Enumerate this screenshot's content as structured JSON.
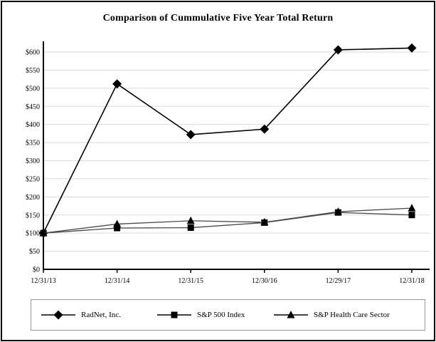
{
  "title": "Comparison of Cummulative Five Year Total Return",
  "colors": {
    "background": "#ffffff",
    "frame_border": "#000000",
    "axis": "#000000",
    "gridline": "#dadada",
    "marker": "#000000",
    "radnet_line": "#000000",
    "index_line": "#4a4a4a",
    "legend_border": "#999999"
  },
  "chart_data": {
    "type": "line",
    "title": "Comparison of Cummulative Five Year Total Return",
    "categories": [
      "12/31/13",
      "12/31/14",
      "12/31/15",
      "12/30/16",
      "12/29/17",
      "12/31/18"
    ],
    "series": [
      {
        "name": "RadNet, Inc.",
        "marker": "diamond",
        "values": [
          100,
          512,
          372,
          387,
          606,
          611
        ]
      },
      {
        "name": "S&P 500 Index",
        "marker": "square",
        "values": [
          100,
          114,
          115,
          129,
          157,
          150
        ]
      },
      {
        "name": "S&P Health Care Sector",
        "marker": "triangle",
        "values": [
          100,
          125,
          134,
          130,
          159,
          169
        ]
      }
    ],
    "y_ticks": [
      "$0",
      "$50",
      "$100",
      "$150",
      "$200",
      "$250",
      "$300",
      "$350",
      "$400",
      "$450",
      "$500",
      "$550",
      "$600"
    ],
    "ylim": [
      0,
      600
    ],
    "y_tick_interval": 50,
    "grid": true,
    "legend_position": "bottom"
  }
}
